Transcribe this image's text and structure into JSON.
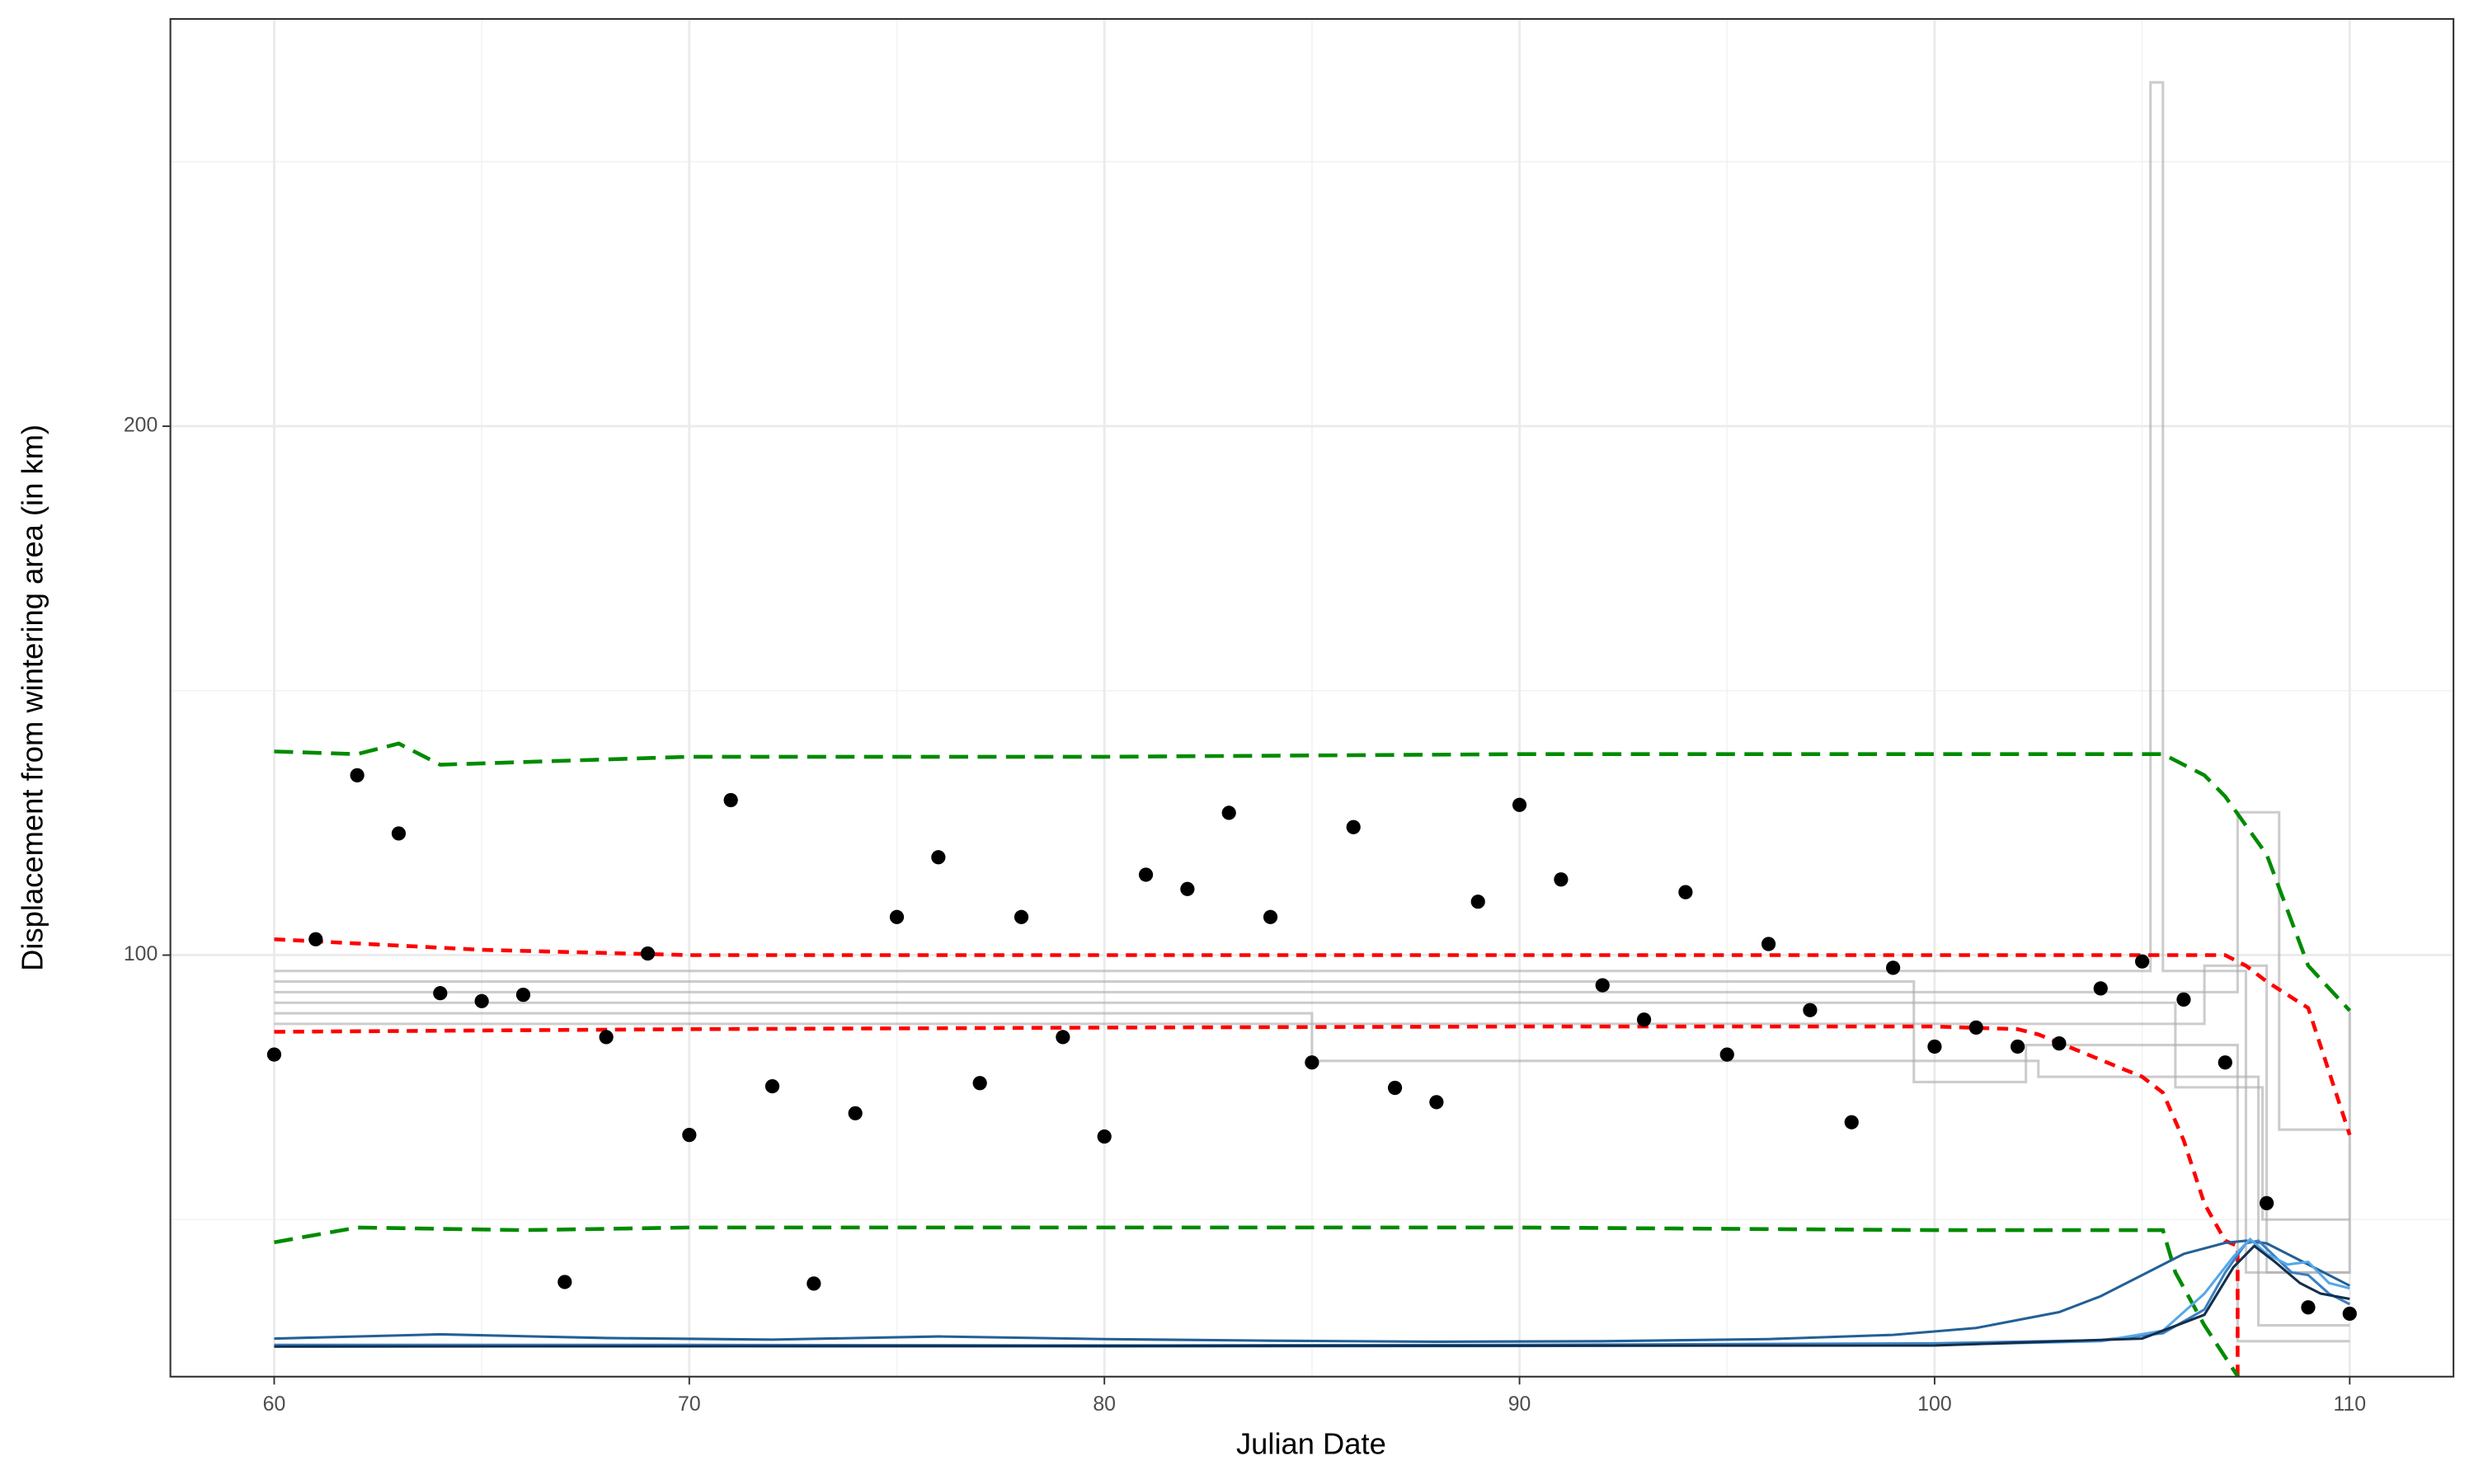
{
  "chart_data": {
    "type": "scatter",
    "x_label": "Julian Date",
    "y_label": "Displacement from wintering area (in km)",
    "xlim": [
      57.5,
      112.5
    ],
    "ylim": [
      20.3,
      277
    ],
    "xticks": [
      60,
      70,
      80,
      90,
      100,
      110
    ],
    "yticks": [
      100,
      200
    ],
    "x_minor_grid": [
      65,
      75,
      85,
      95,
      105
    ],
    "y_minor_grid": [
      50,
      150,
      250
    ],
    "grid": true,
    "lines": [
      {
        "color": "#aaaaaa",
        "dash": "solid",
        "opacity": 0.6,
        "x": [
          60,
          105.2,
          105.2,
          105.5,
          105.5,
          107.5,
          107.5,
          110
        ],
        "y": [
          97,
          97,
          265,
          265,
          97,
          97,
          40,
          40
        ]
      },
      {
        "color": "#aaaaaa",
        "dash": "solid",
        "opacity": 0.6,
        "x": [
          60,
          85,
          85,
          102.5,
          102.5,
          107.8,
          107.8,
          110
        ],
        "y": [
          89,
          89,
          80,
          80,
          77,
          77,
          30,
          30
        ]
      },
      {
        "color": "#aaaaaa",
        "dash": "solid",
        "opacity": 0.6,
        "x": [
          60,
          99.5,
          99.5,
          102.2,
          102.2,
          107.3,
          107.3,
          110
        ],
        "y": [
          95,
          95,
          76,
          76,
          83,
          83,
          27,
          27
        ]
      },
      {
        "color": "#aaaaaa",
        "dash": "solid",
        "opacity": 0.6,
        "x": [
          60,
          107.3,
          107.3,
          108.3,
          108.3,
          110
        ],
        "y": [
          93,
          93,
          127,
          127,
          67,
          67
        ]
      },
      {
        "color": "#aaaaaa",
        "dash": "solid",
        "opacity": 0.6,
        "x": [
          60,
          105.8,
          105.8,
          107.9,
          107.9,
          110
        ],
        "y": [
          91,
          91,
          75,
          75,
          50,
          50
        ]
      },
      {
        "color": "#aaaaaa",
        "dash": "solid",
        "opacity": 0.6,
        "x": [
          60,
          106.5,
          106.5,
          108,
          108,
          110,
          110
        ],
        "y": [
          87,
          87,
          98,
          98,
          40,
          40,
          90
        ]
      },
      {
        "color": "#ff0000",
        "dash": "dashed",
        "opacity": 1,
        "x": [
          60,
          65,
          70,
          80,
          90,
          100,
          105,
          107,
          107.5,
          108,
          109,
          110
        ],
        "y": [
          103,
          101,
          100,
          100,
          100,
          100,
          100,
          100,
          98,
          95,
          90,
          66
        ]
      },
      {
        "color": "#ff0000",
        "dash": "dashed",
        "opacity": 1,
        "x": [
          60,
          70,
          80,
          90,
          100,
          102,
          102.5,
          105,
          105.5,
          106,
          106.5,
          107,
          107.3,
          107.3
        ],
        "y": [
          85.5,
          86,
          86.3,
          86.5,
          86.5,
          86,
          85,
          77,
          74,
          65,
          53,
          46,
          45,
          20
        ]
      },
      {
        "color": "#008b00",
        "dash": "longdash",
        "opacity": 1,
        "x": [
          60,
          62,
          63,
          64,
          66,
          70,
          80,
          90,
          100,
          105.5,
          106.5,
          107,
          108,
          109,
          110
        ],
        "y": [
          138.5,
          138,
          140,
          136,
          136.5,
          137.5,
          137.5,
          138,
          138,
          138,
          134,
          130,
          119,
          98,
          89.5
        ]
      },
      {
        "color": "#008b00",
        "dash": "longdash",
        "opacity": 1,
        "x": [
          60,
          62,
          66,
          70,
          80,
          90,
          100,
          105.5,
          105.8,
          106.5,
          107,
          107.5
        ],
        "y": [
          45.7,
          48.5,
          48,
          48.5,
          48.5,
          48.5,
          48,
          48,
          40,
          30,
          24,
          18
        ]
      },
      {
        "color": "#236096",
        "dash": "solid",
        "opacity": 1,
        "x": [
          60,
          64,
          68,
          72,
          76,
          80,
          84,
          88,
          92,
          96,
          99,
          101,
          103,
          104,
          105,
          106,
          107,
          107.5,
          108,
          109,
          110
        ],
        "y": [
          27.5,
          28.3,
          27.6,
          27.3,
          27.9,
          27.4,
          27.1,
          26.9,
          27,
          27.4,
          28.2,
          29.5,
          32.5,
          35.5,
          39.5,
          43.5,
          45.6,
          46,
          45.5,
          41.5,
          37.5
        ]
      },
      {
        "color": "#3a80c4",
        "dash": "solid",
        "opacity": 1,
        "x": [
          60,
          70,
          80,
          90,
          100,
          104,
          105.5,
          106.5,
          107,
          107.5,
          107.8,
          108.2,
          108.6,
          109,
          109.5,
          110
        ],
        "y": [
          26.3,
          26.3,
          26.2,
          26.3,
          26.6,
          27.2,
          28.5,
          33,
          40,
          45.5,
          46,
          43,
          40,
          39.5,
          36,
          34
        ]
      },
      {
        "color": "#56a7ea",
        "dash": "solid",
        "opacity": 1,
        "x": [
          60,
          70,
          80,
          90,
          100,
          104,
          105.5,
          106.5,
          107.2,
          107.6,
          108,
          108.5,
          109,
          109.5,
          110
        ],
        "y": [
          26,
          26.1,
          26,
          26.1,
          26.3,
          27,
          29,
          36,
          43,
          46.3,
          43.5,
          41.5,
          42,
          38,
          37
        ]
      },
      {
        "color": "#142e4a",
        "dash": "solid",
        "opacity": 1,
        "x": [
          60,
          100,
          105,
          106.5,
          107.2,
          107.7,
          108.2,
          108.8,
          109.3,
          110
        ],
        "y": [
          26,
          26.2,
          27.5,
          32,
          41,
          45,
          42,
          38,
          36,
          35
        ]
      }
    ],
    "points": {
      "color": "#000000",
      "x": [
        60,
        61,
        62,
        63,
        64,
        65,
        66,
        67,
        68,
        69,
        70,
        71,
        72,
        73,
        74,
        75,
        76,
        77,
        78,
        79,
        80,
        81,
        82,
        83,
        84,
        85,
        86,
        87,
        88,
        89,
        90,
        91,
        92,
        93,
        94,
        95,
        96,
        97,
        98,
        99,
        100,
        101,
        102,
        103,
        104,
        105,
        106,
        107,
        108,
        109,
        110
      ],
      "y": [
        81.2,
        103,
        134,
        123,
        92.8,
        91.3,
        92.5,
        38.2,
        84.5,
        100.3,
        66,
        129.3,
        75.2,
        37.9,
        70.1,
        107.2,
        118.5,
        75.8,
        107.2,
        84.5,
        65.7,
        115.2,
        112.5,
        126.9,
        107.2,
        79.7,
        124.2,
        74.9,
        72.2,
        110.1,
        128.4,
        114.3,
        94.3,
        87.8,
        111.9,
        81.2,
        102.1,
        89.6,
        68.4,
        97.6,
        82.7,
        86.3,
        82.7,
        83.3,
        93.7,
        98.8,
        91.6,
        79.7,
        53.1,
        33.4,
        32.2
      ]
    }
  }
}
